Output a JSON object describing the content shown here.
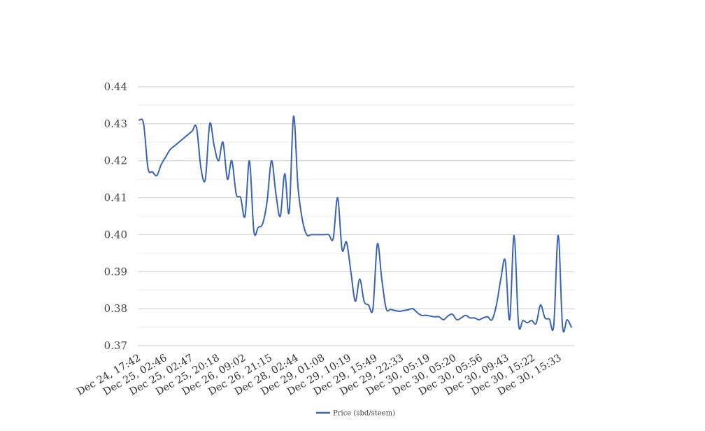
{
  "chart_data": {
    "type": "line",
    "title": "",
    "xlabel": "",
    "ylabel": "",
    "ylim": [
      0.37,
      0.44
    ],
    "yticks": [
      "0.37",
      "0.38",
      "0.39",
      "0.40",
      "0.41",
      "0.42",
      "0.43",
      "0.44"
    ],
    "grid": true,
    "legend_position": "bottom",
    "x_tick_labels": [
      "Dec 24, 17:42",
      "Dec 25, 02:46",
      "Dec 25, 02:47",
      "Dec 25, 20:18",
      "Dec 26, 09:02",
      "Dec 26, 21:15",
      "Dec 28, 02:44",
      "Dec 29, 01:08",
      "Dec 29, 10:19",
      "Dec 29, 15:49",
      "Dec 29, 22:33",
      "Dec 30, 05:19",
      "Dec 30, 05:20",
      "Dec 30, 05:56",
      "Dec 30, 09:43",
      "Dec 30, 15:22",
      "Dec 30, 15:33"
    ],
    "series": [
      {
        "name": "Price (sbd/steem)",
        "color": "#3a64b5",
        "values": [
          0.431,
          0.43,
          0.418,
          0.417,
          0.416,
          0.419,
          0.421,
          0.423,
          0.424,
          0.425,
          0.426,
          0.427,
          0.428,
          0.429,
          0.418,
          0.415,
          0.43,
          0.424,
          0.42,
          0.425,
          0.415,
          0.42,
          0.411,
          0.41,
          0.405,
          0.42,
          0.401,
          0.402,
          0.403,
          0.409,
          0.42,
          0.411,
          0.405,
          0.4165,
          0.406,
          0.432,
          0.413,
          0.404,
          0.4,
          0.4,
          0.4,
          0.4,
          0.4,
          0.4,
          0.399,
          0.41,
          0.396,
          0.398,
          0.39,
          0.382,
          0.388,
          0.382,
          0.381,
          0.38,
          0.3975,
          0.388,
          0.38,
          0.3798,
          0.3795,
          0.3793,
          0.3795,
          0.3797,
          0.38,
          0.379,
          0.3782,
          0.3782,
          0.378,
          0.3778,
          0.3778,
          0.377,
          0.378,
          0.3785,
          0.377,
          0.3775,
          0.3782,
          0.3775,
          0.3775,
          0.377,
          0.3775,
          0.3778,
          0.377,
          0.381,
          0.388,
          0.393,
          0.377,
          0.3998,
          0.376,
          0.3768,
          0.3762,
          0.3768,
          0.376,
          0.381,
          0.3775,
          0.3772,
          0.3755,
          0.3998,
          0.375,
          0.377,
          0.375
        ]
      }
    ]
  }
}
